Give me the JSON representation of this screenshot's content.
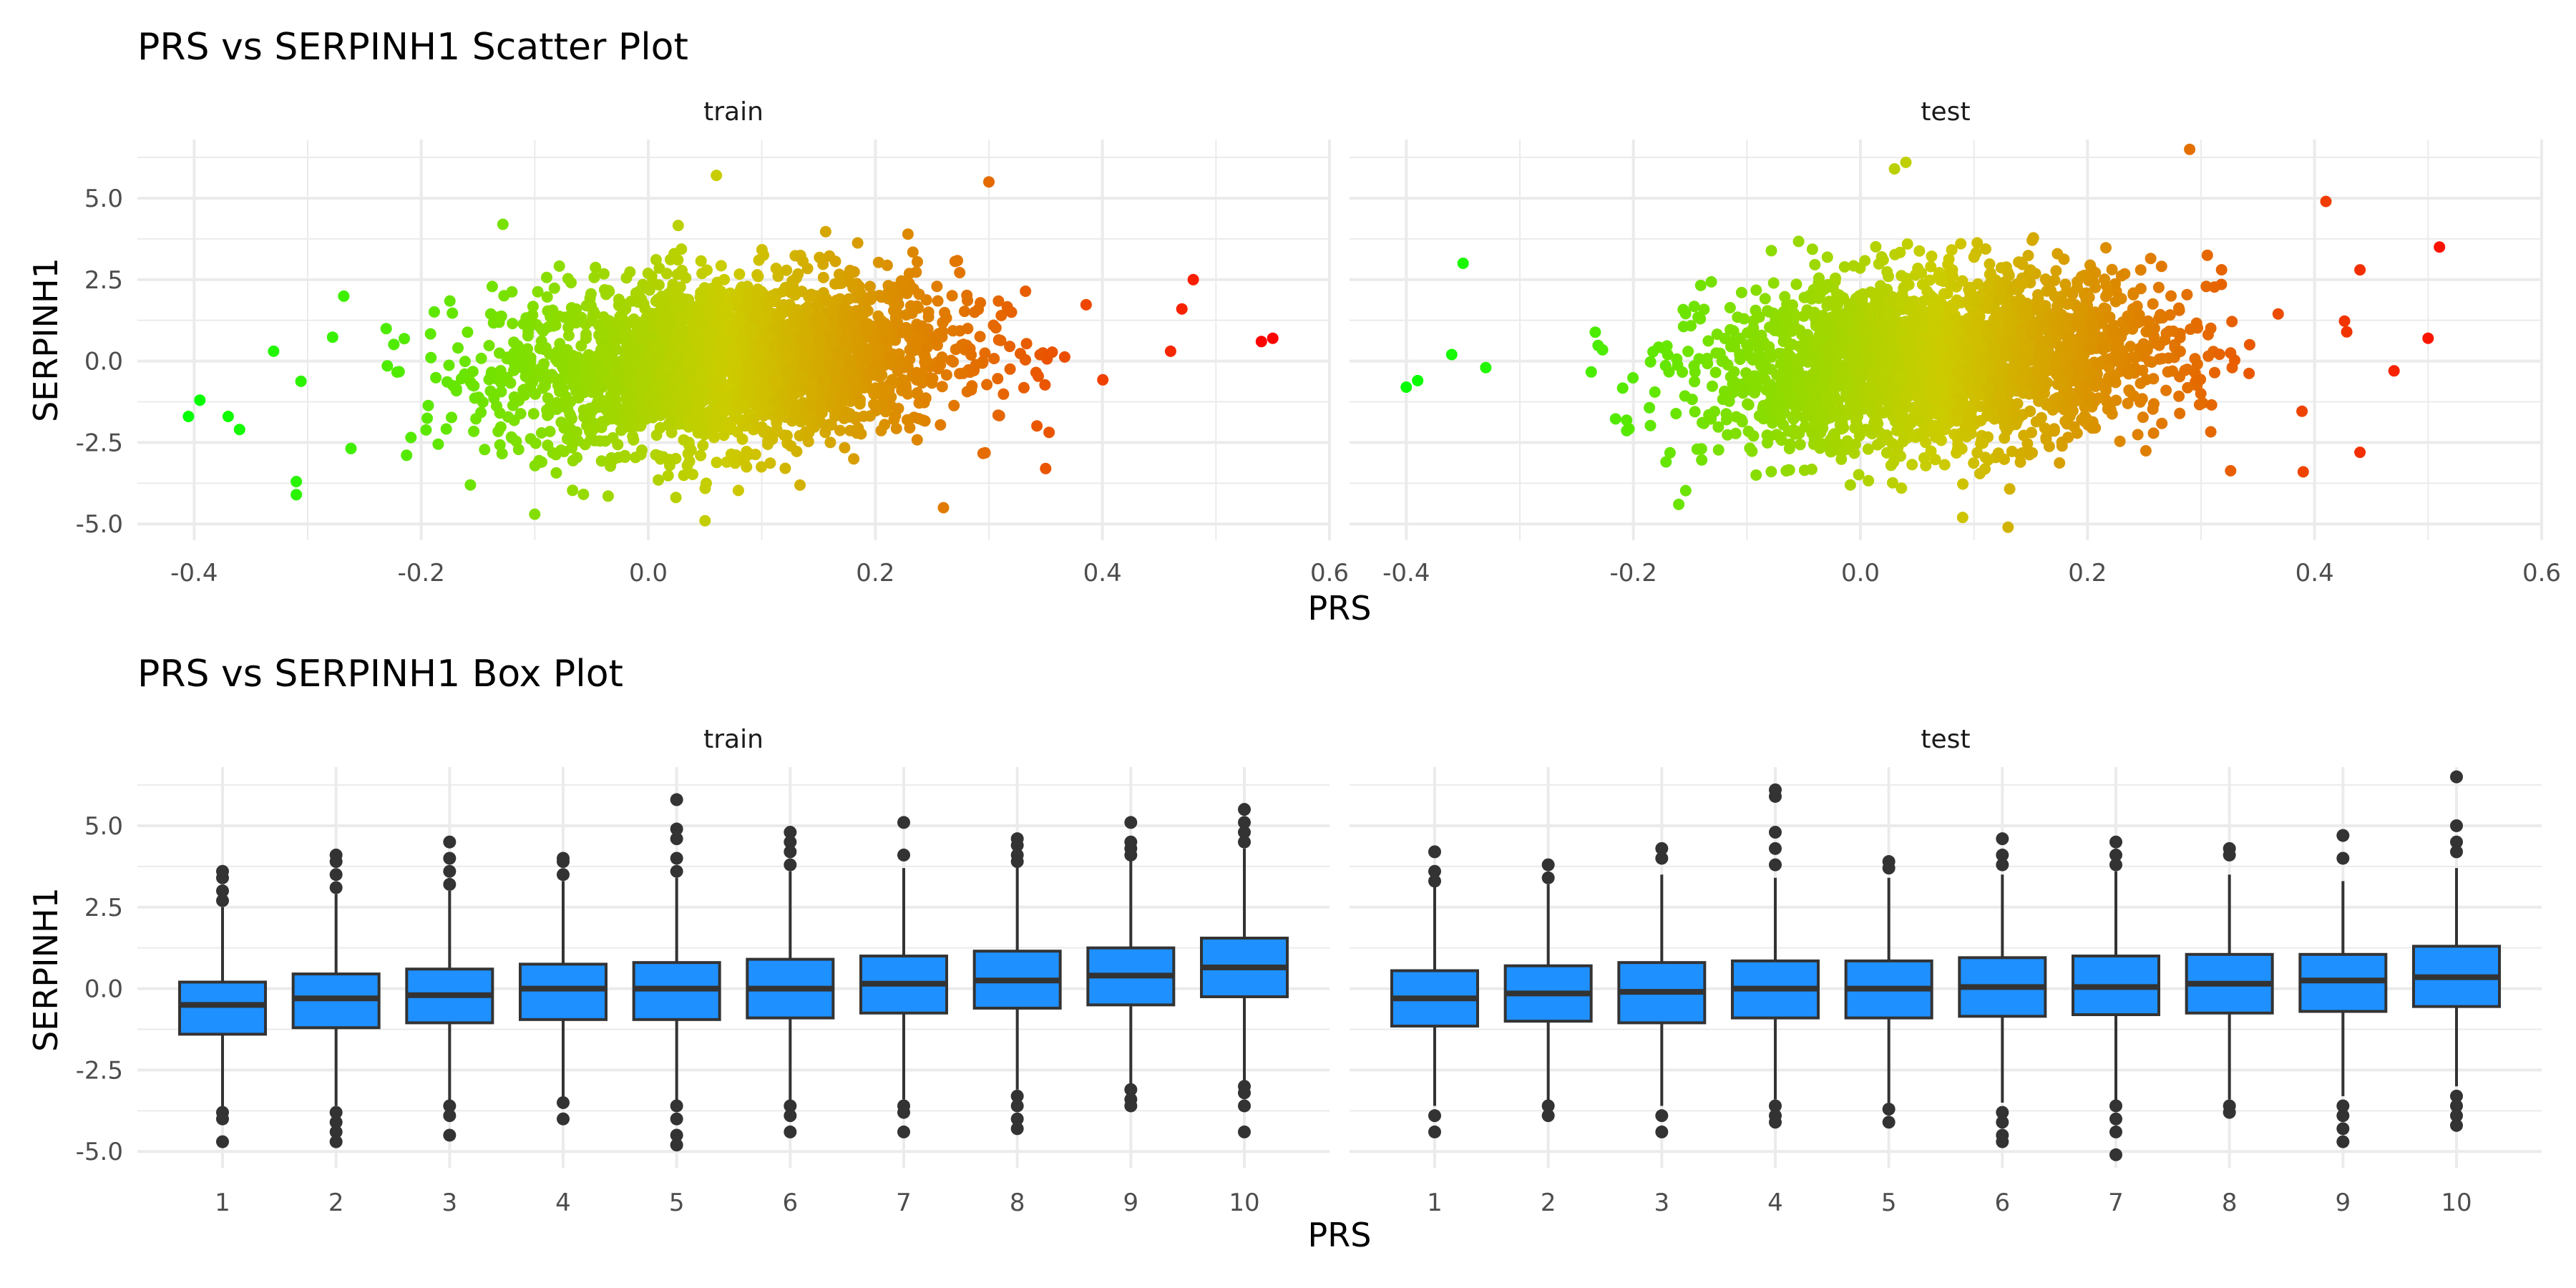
{
  "scatter": {
    "title": "PRS vs SERPINH1 Scatter Plot",
    "xlabel": "PRS",
    "ylabel": "SERPINH1",
    "x_ticks": [
      "-0.4",
      "-0.2",
      "0.0",
      "0.2",
      "0.4",
      "0.6"
    ],
    "y_ticks": [
      "-5.0",
      "-2.5",
      "0.0",
      "2.5",
      "5.0"
    ]
  },
  "box": {
    "title": "PRS vs SERPINH1 Box Plot",
    "xlabel": "PRS",
    "ylabel": "SERPINH1",
    "x_ticks": [
      "1",
      "2",
      "3",
      "4",
      "5",
      "6",
      "7",
      "8",
      "9",
      "10"
    ],
    "y_ticks": [
      "-5.0",
      "-2.5",
      "0.0",
      "2.5",
      "5.0"
    ]
  },
  "colors": {
    "low": "#00ff00",
    "mid": "#cccc00",
    "high": "#ff0000",
    "box_fill": "#1e90ff",
    "box_stroke": "#333333",
    "grid": "#ebebeb"
  },
  "chart_data": [
    {
      "type": "scatter",
      "title": "PRS vs SERPINH1 Scatter Plot",
      "xlabel": "PRS",
      "ylabel": "SERPINH1",
      "facets": [
        "train",
        "test"
      ],
      "xlim": [
        -0.45,
        0.6
      ],
      "ylim": [
        -5.5,
        6.8
      ],
      "color_scale": "PRS gradient green-yellow-red",
      "grid": true,
      "series": [
        {
          "name": "train",
          "x_center": 0.07,
          "x_sd": 0.1,
          "y_center": 0.0,
          "y_sd": 1.3,
          "outliers": [
            {
              "x": -0.405,
              "y": -1.7
            },
            {
              "x": -0.395,
              "y": -1.2
            },
            {
              "x": -0.37,
              "y": -1.7
            },
            {
              "x": -0.36,
              "y": -2.1
            },
            {
              "x": -0.33,
              "y": 0.3
            },
            {
              "x": -0.31,
              "y": -3.7
            },
            {
              "x": -0.31,
              "y": -4.1
            },
            {
              "x": 0.06,
              "y": 5.7
            },
            {
              "x": 0.3,
              "y": 5.5
            },
            {
              "x": 0.55,
              "y": 0.7
            },
            {
              "x": 0.54,
              "y": 0.6
            },
            {
              "x": 0.48,
              "y": 2.5
            },
            {
              "x": 0.47,
              "y": 1.6
            },
            {
              "x": 0.46,
              "y": 0.3
            },
            {
              "x": 0.05,
              "y": -4.9
            },
            {
              "x": -0.1,
              "y": -4.7
            },
            {
              "x": 0.26,
              "y": -4.5
            },
            {
              "x": 0.35,
              "y": -3.3
            }
          ]
        },
        {
          "name": "test",
          "x_center": 0.07,
          "x_sd": 0.1,
          "y_center": 0.0,
          "y_sd": 1.3,
          "outliers": [
            {
              "x": -0.4,
              "y": -0.8
            },
            {
              "x": -0.39,
              "y": -0.6
            },
            {
              "x": -0.35,
              "y": 3.0
            },
            {
              "x": -0.36,
              "y": 0.2
            },
            {
              "x": -0.33,
              "y": -0.2
            },
            {
              "x": 0.04,
              "y": 6.1
            },
            {
              "x": 0.03,
              "y": 5.9
            },
            {
              "x": 0.29,
              "y": 6.5
            },
            {
              "x": 0.41,
              "y": 4.9
            },
            {
              "x": 0.51,
              "y": 3.5
            },
            {
              "x": 0.5,
              "y": 0.7
            },
            {
              "x": 0.47,
              "y": -0.3
            },
            {
              "x": 0.44,
              "y": 2.8
            },
            {
              "x": 0.44,
              "y": -2.8
            },
            {
              "x": 0.39,
              "y": -3.4
            },
            {
              "x": 0.13,
              "y": -5.1
            },
            {
              "x": 0.09,
              "y": -4.8
            },
            {
              "x": -0.16,
              "y": -4.4
            }
          ]
        }
      ]
    },
    {
      "type": "box",
      "title": "PRS vs SERPINH1 Box Plot",
      "xlabel": "PRS",
      "ylabel": "SERPINH1",
      "categories": [
        "1",
        "2",
        "3",
        "4",
        "5",
        "6",
        "7",
        "8",
        "9",
        "10"
      ],
      "ylim": [
        -5.5,
        6.8
      ],
      "grid": true,
      "series": [
        {
          "name": "train",
          "median": [
            -0.5,
            -0.3,
            -0.2,
            0.0,
            0.0,
            0.0,
            0.15,
            0.25,
            0.4,
            0.65
          ],
          "q1": [
            -1.4,
            -1.2,
            -1.05,
            -0.95,
            -0.95,
            -0.9,
            -0.75,
            -0.6,
            -0.5,
            -0.25
          ],
          "q3": [
            0.2,
            0.45,
            0.6,
            0.75,
            0.8,
            0.9,
            1.0,
            1.15,
            1.25,
            1.55
          ],
          "whisker_low": [
            -3.7,
            -3.6,
            -3.5,
            -3.4,
            -3.5,
            -3.5,
            -3.4,
            -3.1,
            -3.0,
            -2.9
          ],
          "whisker_high": [
            2.5,
            2.9,
            3.0,
            3.3,
            3.4,
            3.6,
            3.7,
            3.8,
            4.0,
            4.3
          ],
          "outliers_high": [
            [
              3.6,
              3.4,
              3.0,
              2.7
            ],
            [
              4.1,
              3.9,
              3.5,
              3.1
            ],
            [
              4.5,
              4.0,
              3.6,
              3.2
            ],
            [
              4.0,
              3.9,
              3.5
            ],
            [
              5.8,
              4.9,
              4.6,
              4.0,
              3.6
            ],
            [
              4.8,
              4.5,
              4.2,
              3.8
            ],
            [
              5.1,
              4.1
            ],
            [
              4.6,
              4.4,
              4.1,
              3.9
            ],
            [
              5.1,
              4.5,
              4.3,
              4.1
            ],
            [
              5.5,
              5.1,
              4.8,
              4.5
            ]
          ],
          "outliers_low": [
            [
              -3.8,
              -4.0,
              -4.7
            ],
            [
              -3.8,
              -4.1,
              -4.4,
              -4.7
            ],
            [
              -3.6,
              -3.9,
              -4.5
            ],
            [
              -3.5,
              -4.0
            ],
            [
              -3.6,
              -4.0,
              -4.5,
              -4.8
            ],
            [
              -3.6,
              -3.9,
              -4.4
            ],
            [
              -3.6,
              -3.8,
              -4.4
            ],
            [
              -3.3,
              -3.6,
              -4.0,
              -4.3
            ],
            [
              -3.1,
              -3.4,
              -3.6
            ],
            [
              -3.0,
              -3.2,
              -3.6,
              -4.4
            ]
          ]
        },
        {
          "name": "test",
          "median": [
            -0.3,
            -0.15,
            -0.1,
            0.0,
            0.0,
            0.05,
            0.05,
            0.15,
            0.25,
            0.35
          ],
          "q1": [
            -1.15,
            -1.0,
            -1.05,
            -0.9,
            -0.9,
            -0.85,
            -0.8,
            -0.75,
            -0.7,
            -0.55
          ],
          "q3": [
            0.55,
            0.7,
            0.8,
            0.85,
            0.85,
            0.95,
            1.0,
            1.05,
            1.05,
            1.3
          ],
          "whisker_low": [
            -3.6,
            -3.5,
            -3.6,
            -3.4,
            -3.5,
            -3.5,
            -3.5,
            -3.4,
            -3.3,
            -3.0
          ],
          "whisker_high": [
            3.2,
            3.2,
            3.5,
            3.4,
            3.4,
            3.5,
            3.6,
            3.5,
            3.3,
            3.7
          ],
          "outliers_high": [
            [
              4.2,
              3.6,
              3.3
            ],
            [
              3.8,
              3.4
            ],
            [
              4.3,
              4.0
            ],
            [
              6.1,
              5.9,
              4.8,
              4.3,
              3.8
            ],
            [
              3.9,
              3.7
            ],
            [
              4.6,
              4.1,
              3.8
            ],
            [
              4.5,
              4.1,
              3.8
            ],
            [
              4.3,
              4.1
            ],
            [
              4.7,
              4.0
            ],
            [
              6.5,
              5.0,
              4.5,
              4.2
            ]
          ],
          "outliers_low": [
            [
              -3.9,
              -4.4
            ],
            [
              -3.6,
              -3.9
            ],
            [
              -3.9,
              -4.4
            ],
            [
              -3.6,
              -3.9,
              -4.1
            ],
            [
              -3.7,
              -4.1
            ],
            [
              -3.8,
              -4.1,
              -4.5,
              -4.7
            ],
            [
              -3.6,
              -4.0,
              -4.4,
              -5.1
            ],
            [
              -3.6,
              -3.8
            ],
            [
              -3.6,
              -3.9,
              -4.3,
              -4.7
            ],
            [
              -3.3,
              -3.6,
              -3.9,
              -4.2
            ]
          ]
        }
      ]
    }
  ]
}
